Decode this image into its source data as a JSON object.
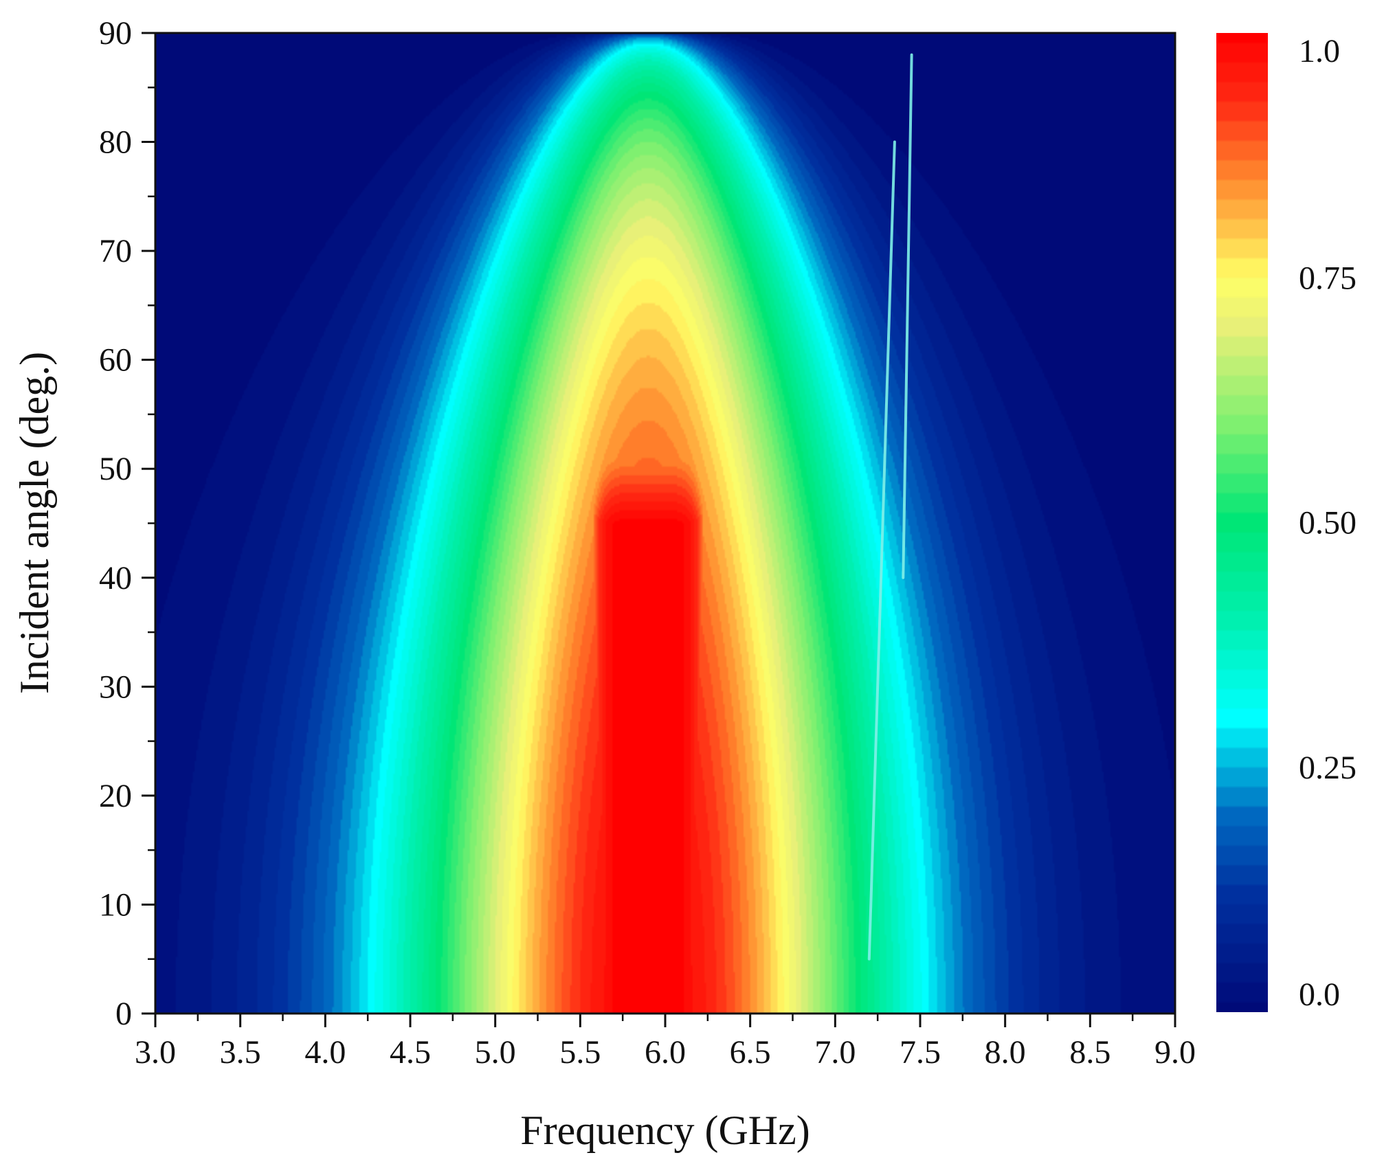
{
  "chart_data": {
    "type": "heatmap",
    "xlabel": "Frequency (GHz)",
    "ylabel": "Incident angle (deg.)",
    "xlim": [
      3.0,
      9.0
    ],
    "ylim": [
      0,
      90
    ],
    "x_ticks": [
      "3.0",
      "3.5",
      "4.0",
      "4.5",
      "5.0",
      "5.5",
      "6.0",
      "6.5",
      "7.0",
      "7.5",
      "8.0",
      "8.5",
      "9.0"
    ],
    "x_tick_values": [
      3.0,
      3.5,
      4.0,
      4.5,
      5.0,
      5.5,
      6.0,
      6.5,
      7.0,
      7.5,
      8.0,
      8.5,
      9.0
    ],
    "y_ticks": [
      "0",
      "10",
      "20",
      "30",
      "40",
      "50",
      "60",
      "70",
      "80",
      "90"
    ],
    "y_tick_values": [
      0,
      10,
      20,
      30,
      40,
      50,
      60,
      70,
      80,
      90
    ],
    "colorbar": {
      "range": [
        0,
        1
      ],
      "tick_labels": [
        "0.0",
        "0.25",
        "0.50",
        "0.75",
        "1.0"
      ],
      "tick_values": [
        0.0,
        0.25,
        0.5,
        0.75,
        1.0
      ],
      "levels": 51
    },
    "colormap": [
      [
        0.0,
        "#000a78"
      ],
      [
        0.12,
        "#00309f"
      ],
      [
        0.2,
        "#0068c0"
      ],
      [
        0.27,
        "#00d0e8"
      ],
      [
        0.3,
        "#00ffff"
      ],
      [
        0.4,
        "#00f0b0"
      ],
      [
        0.5,
        "#00e676"
      ],
      [
        0.6,
        "#7ff070"
      ],
      [
        0.7,
        "#e8f078"
      ],
      [
        0.75,
        "#ffff66"
      ],
      [
        0.85,
        "#ff8a2e"
      ],
      [
        0.93,
        "#ff2a14"
      ],
      [
        1.0,
        "#ff0000"
      ]
    ],
    "features": {
      "main_peak": {
        "frequency": 5.9,
        "max_value": 1.0,
        "red_region_angle_max": 45
      },
      "resonance_lines": [
        {
          "frequency_start": 7.2,
          "angle_start": 5,
          "frequency_end": 7.35,
          "angle_end": 80
        },
        {
          "frequency_start": 7.4,
          "angle_start": 40,
          "frequency_end": 7.45,
          "angle_end": 88
        }
      ]
    },
    "grid": false
  }
}
